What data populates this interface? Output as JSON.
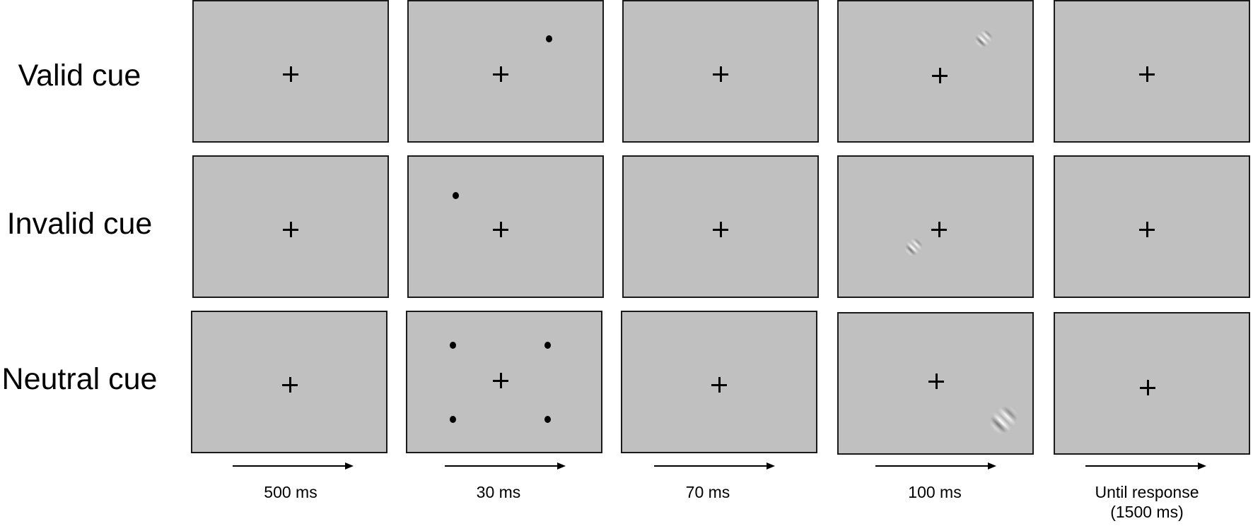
{
  "rows": [
    {
      "label": "Valid cue"
    },
    {
      "label": "Invalid cue"
    },
    {
      "label": "Neutral cue"
    }
  ],
  "durations": [
    {
      "label": "500 ms"
    },
    {
      "label": "30 ms"
    },
    {
      "label": "70 ms"
    },
    {
      "label": "100 ms"
    },
    {
      "label": "Until response",
      "sublabel": "(1500 ms)"
    }
  ],
  "colors": {
    "screen_background": "#c0c0c0",
    "screen_border": "#1a1a1a",
    "fixation": "#000000",
    "cue_dot": "#000000"
  }
}
